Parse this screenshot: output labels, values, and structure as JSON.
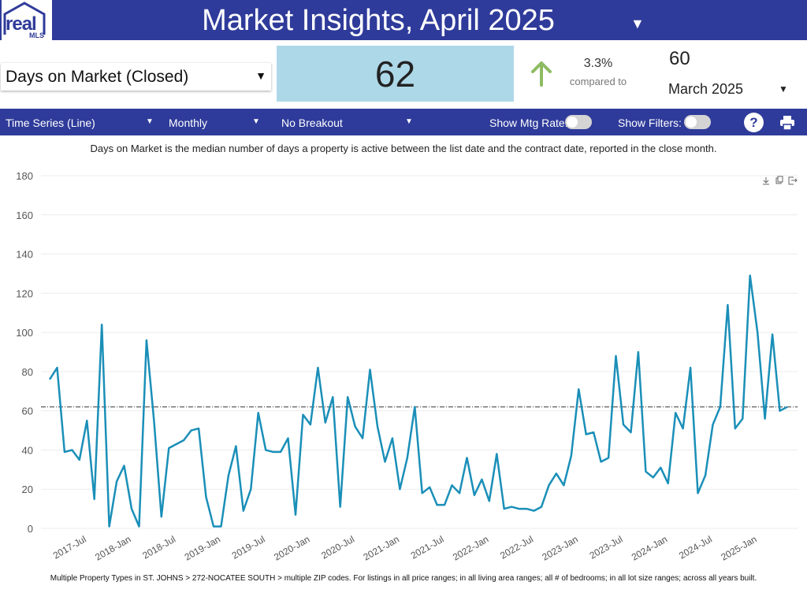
{
  "logo": {
    "text": "real",
    "sub": "MLS"
  },
  "header": {
    "title": "Market Insights, April 2025"
  },
  "metric": {
    "label": "Days on Market (Closed)"
  },
  "current": {
    "value": "62"
  },
  "change": {
    "pct": "3.3%",
    "compared_label": "compared to",
    "direction": "up",
    "color": "#8dbb63"
  },
  "previous": {
    "value": "60",
    "month": "March 2025"
  },
  "toolbar": {
    "chart_type": "Time Series (Line)",
    "interval": "Monthly",
    "breakout": "No Breakout",
    "mtg_rate_label": "Show Mtg Rate:",
    "filters_label": "Show Filters:",
    "help_label": "?"
  },
  "colors": {
    "brand": "#2f3b9a",
    "value_box": "#add8e8",
    "line": "#1a8fb8"
  },
  "description": "Days on Market is the median number of days a property is active between the list date and the contract date, reported in the close month.",
  "footer": "Multiple Property Types in ST. JOHNS > 272-NOCATEE SOUTH > multiple ZIP codes. For listings in all price ranges; in all living area ranges; all # of bedrooms; in all lot size ranges; across all years built.",
  "chart_data": {
    "type": "line",
    "xlabel": "",
    "ylabel": "",
    "ylim": [
      0,
      180
    ],
    "y_ticks": [
      0,
      20,
      40,
      60,
      80,
      100,
      120,
      140,
      160,
      180
    ],
    "x_tick_labels": [
      "2017-Jul",
      "2018-Jan",
      "2018-Jul",
      "2019-Jan",
      "2019-Jul",
      "2020-Jan",
      "2020-Jul",
      "2021-Jan",
      "2021-Jul",
      "2022-Jan",
      "2022-Jul",
      "2023-Jan",
      "2023-Jul",
      "2024-Jan",
      "2024-Jul",
      "2025-Jan"
    ],
    "x_start": "2017-Feb",
    "x_end": "2025-Apr",
    "reference_line": 62,
    "grid": true,
    "series": [
      {
        "values": [
          76,
          82,
          39,
          40,
          35,
          55,
          15,
          104,
          1,
          24,
          32,
          10,
          1,
          96,
          55,
          6,
          41,
          43,
          45,
          50,
          51,
          16,
          1,
          1,
          27,
          42,
          9,
          20,
          59,
          40,
          39,
          39,
          46,
          7,
          58,
          53,
          82,
          54,
          67,
          11,
          67,
          52,
          46,
          81,
          52,
          34,
          46,
          20,
          36,
          62,
          18,
          21,
          12,
          12,
          22,
          18,
          36,
          17,
          25,
          14,
          38,
          10,
          11,
          10,
          10,
          9,
          11,
          22,
          28,
          22,
          37,
          71,
          48,
          49,
          34,
          36,
          88,
          53,
          49,
          90,
          29,
          26,
          31,
          23,
          59,
          51,
          82,
          18,
          27,
          53,
          62,
          114,
          51,
          56,
          129,
          100,
          56,
          99,
          60,
          62
        ]
      }
    ]
  }
}
